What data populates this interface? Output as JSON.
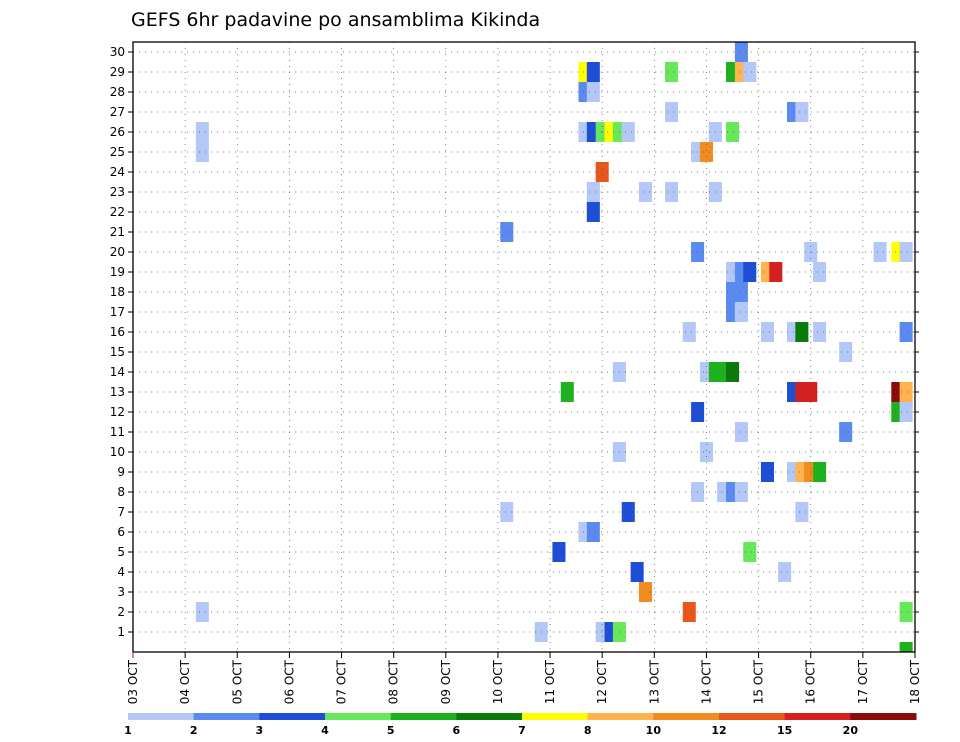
{
  "chart_data": {
    "type": "heatmap",
    "title": "GEFS 6hr padavine po ansamblima Kikinda",
    "xlabel": "",
    "ylabel": "",
    "x_ticks": [
      "03 OCT",
      "04 OCT",
      "05 OCT",
      "06 OCT",
      "07 OCT",
      "08 OCT",
      "09 OCT",
      "10 OCT",
      "11 OCT",
      "12 OCT",
      "13 OCT",
      "14 OCT",
      "15 OCT",
      "16 OCT",
      "17 OCT",
      "18 OCT"
    ],
    "y_ticks": [
      "1",
      "2",
      "3",
      "4",
      "5",
      "6",
      "7",
      "8",
      "9",
      "10",
      "11",
      "12",
      "13",
      "14",
      "15",
      "16",
      "17",
      "18",
      "19",
      "20",
      "21",
      "22",
      "23",
      "24",
      "25",
      "26",
      "27",
      "28",
      "29",
      "30"
    ],
    "xlim": [
      0,
      15
    ],
    "ylim": [
      0.5,
      30.5
    ],
    "grid": true,
    "colorbar": {
      "labels": [
        "1",
        "2",
        "3",
        "4",
        "5",
        "6",
        "7",
        "8",
        "10",
        "12",
        "15",
        "20"
      ],
      "colors": [
        "#b3c8f7",
        "#5a8af0",
        "#1f4ed6",
        "#66e85a",
        "#1db21d",
        "#0a7a0a",
        "#ffff00",
        "#ffb24d",
        "#f28c1e",
        "#e8561c",
        "#d42020",
        "#8b0a0a"
      ]
    },
    "cells": [
      {
        "t": 1.33,
        "m": 2,
        "c": 0
      },
      {
        "t": 1.33,
        "m": 25,
        "c": 0
      },
      {
        "t": 1.33,
        "m": 26,
        "c": 0
      },
      {
        "t": 7.17,
        "m": 7,
        "c": 0
      },
      {
        "t": 7.17,
        "m": 21,
        "c": 1
      },
      {
        "t": 7.83,
        "m": 1,
        "c": 0
      },
      {
        "t": 8.17,
        "m": 5,
        "c": 2
      },
      {
        "t": 8.33,
        "m": 13,
        "c": 4
      },
      {
        "t": 8.67,
        "m": 6,
        "c": 0
      },
      {
        "t": 8.67,
        "m": 26,
        "c": 0
      },
      {
        "t": 8.67,
        "m": 28,
        "c": 1
      },
      {
        "t": 8.67,
        "m": 29,
        "c": 6
      },
      {
        "t": 8.83,
        "m": 6,
        "c": 1
      },
      {
        "t": 8.83,
        "m": 22,
        "c": 2
      },
      {
        "t": 8.83,
        "m": 23,
        "c": 0
      },
      {
        "t": 8.83,
        "m": 26,
        "c": 2
      },
      {
        "t": 8.83,
        "m": 28,
        "c": 0
      },
      {
        "t": 8.83,
        "m": 29,
        "c": 2
      },
      {
        "t": 9.0,
        "m": 1,
        "c": 0
      },
      {
        "t": 9.0,
        "m": 24,
        "c": 9
      },
      {
        "t": 9.0,
        "m": 26,
        "c": 3
      },
      {
        "t": 9.17,
        "m": 1,
        "c": 2
      },
      {
        "t": 9.17,
        "m": 26,
        "c": 6
      },
      {
        "t": 9.33,
        "m": 1,
        "c": 3
      },
      {
        "t": 9.33,
        "m": 10,
        "c": 0
      },
      {
        "t": 9.33,
        "m": 14,
        "c": 0
      },
      {
        "t": 9.33,
        "m": 26,
        "c": 3
      },
      {
        "t": 9.5,
        "m": 26,
        "c": 0
      },
      {
        "t": 9.5,
        "m": 7,
        "c": 2
      },
      {
        "t": 9.67,
        "m": 4,
        "c": 2
      },
      {
        "t": 9.83,
        "m": 3,
        "c": 8
      },
      {
        "t": 9.83,
        "m": 23,
        "c": 0
      },
      {
        "t": 10.33,
        "m": 23,
        "c": 0
      },
      {
        "t": 10.33,
        "m": 27,
        "c": 0
      },
      {
        "t": 10.33,
        "m": 29,
        "c": 3
      },
      {
        "t": 10.67,
        "m": 2,
        "c": 9
      },
      {
        "t": 10.67,
        "m": 16,
        "c": 0
      },
      {
        "t": 10.83,
        "m": 8,
        "c": 0
      },
      {
        "t": 10.83,
        "m": 12,
        "c": 2
      },
      {
        "t": 10.83,
        "m": 20,
        "c": 1
      },
      {
        "t": 10.83,
        "m": 25,
        "c": 0
      },
      {
        "t": 11.0,
        "m": 10,
        "c": 0
      },
      {
        "t": 11.0,
        "m": 14,
        "c": 0
      },
      {
        "t": 11.0,
        "m": 25,
        "c": 8
      },
      {
        "t": 11.17,
        "m": 14,
        "c": 4
      },
      {
        "t": 11.17,
        "m": 23,
        "c": 0
      },
      {
        "t": 11.17,
        "m": 26,
        "c": 0
      },
      {
        "t": 11.33,
        "m": 8,
        "c": 0
      },
      {
        "t": 11.33,
        "m": 14,
        "c": 4
      },
      {
        "t": 11.5,
        "m": 8,
        "c": 1
      },
      {
        "t": 11.5,
        "m": 14,
        "c": 5
      },
      {
        "t": 11.5,
        "m": 17,
        "c": 1
      },
      {
        "t": 11.5,
        "m": 18,
        "c": 1
      },
      {
        "t": 11.5,
        "m": 19,
        "c": 0
      },
      {
        "t": 11.5,
        "m": 26,
        "c": 3
      },
      {
        "t": 11.5,
        "m": 29,
        "c": 4
      },
      {
        "t": 11.67,
        "m": 8,
        "c": 0
      },
      {
        "t": 11.67,
        "m": 11,
        "c": 0
      },
      {
        "t": 11.67,
        "m": 17,
        "c": 0
      },
      {
        "t": 11.67,
        "m": 18,
        "c": 1
      },
      {
        "t": 11.67,
        "m": 19,
        "c": 1
      },
      {
        "t": 11.67,
        "m": 29,
        "c": 7
      },
      {
        "t": 11.67,
        "m": 30,
        "c": 1
      },
      {
        "t": 11.83,
        "m": 5,
        "c": 3
      },
      {
        "t": 11.83,
        "m": 19,
        "c": 2
      },
      {
        "t": 11.83,
        "m": 29,
        "c": 0
      },
      {
        "t": 12.17,
        "m": 9,
        "c": 2
      },
      {
        "t": 12.17,
        "m": 16,
        "c": 0
      },
      {
        "t": 12.17,
        "m": 19,
        "c": 7
      },
      {
        "t": 12.33,
        "m": 19,
        "c": 10
      },
      {
        "t": 12.5,
        "m": 4,
        "c": 0
      },
      {
        "t": 12.67,
        "m": 9,
        "c": 0
      },
      {
        "t": 12.67,
        "m": 13,
        "c": 2
      },
      {
        "t": 12.67,
        "m": 16,
        "c": 0
      },
      {
        "t": 12.67,
        "m": 27,
        "c": 1
      },
      {
        "t": 12.83,
        "m": 7,
        "c": 0
      },
      {
        "t": 12.83,
        "m": 9,
        "c": 7
      },
      {
        "t": 12.83,
        "m": 13,
        "c": 10
      },
      {
        "t": 12.83,
        "m": 16,
        "c": 5
      },
      {
        "t": 12.83,
        "m": 27,
        "c": 0
      },
      {
        "t": 13.0,
        "m": 9,
        "c": 8
      },
      {
        "t": 13.0,
        "m": 13,
        "c": 10
      },
      {
        "t": 13.0,
        "m": 20,
        "c": 0
      },
      {
        "t": 13.17,
        "m": 9,
        "c": 4
      },
      {
        "t": 13.17,
        "m": 16,
        "c": 0
      },
      {
        "t": 13.17,
        "m": 19,
        "c": 0
      },
      {
        "t": 13.67,
        "m": 11,
        "c": 1
      },
      {
        "t": 13.67,
        "m": 15,
        "c": 0
      },
      {
        "t": 14.33,
        "m": 20,
        "c": 0
      },
      {
        "t": 14.67,
        "m": 12,
        "c": 4
      },
      {
        "t": 14.67,
        "m": 13,
        "c": 11
      },
      {
        "t": 14.67,
        "m": 20,
        "c": 6
      },
      {
        "t": 14.83,
        "m": 12,
        "c": 0
      },
      {
        "t": 14.83,
        "m": 13,
        "c": 7
      },
      {
        "t": 14.83,
        "m": 16,
        "c": 1
      },
      {
        "t": 14.83,
        "m": 20,
        "c": 0
      },
      {
        "t": 14.83,
        "m": 2,
        "c": 3
      },
      {
        "t": 14.83,
        "m": 0,
        "c": 4
      }
    ]
  }
}
